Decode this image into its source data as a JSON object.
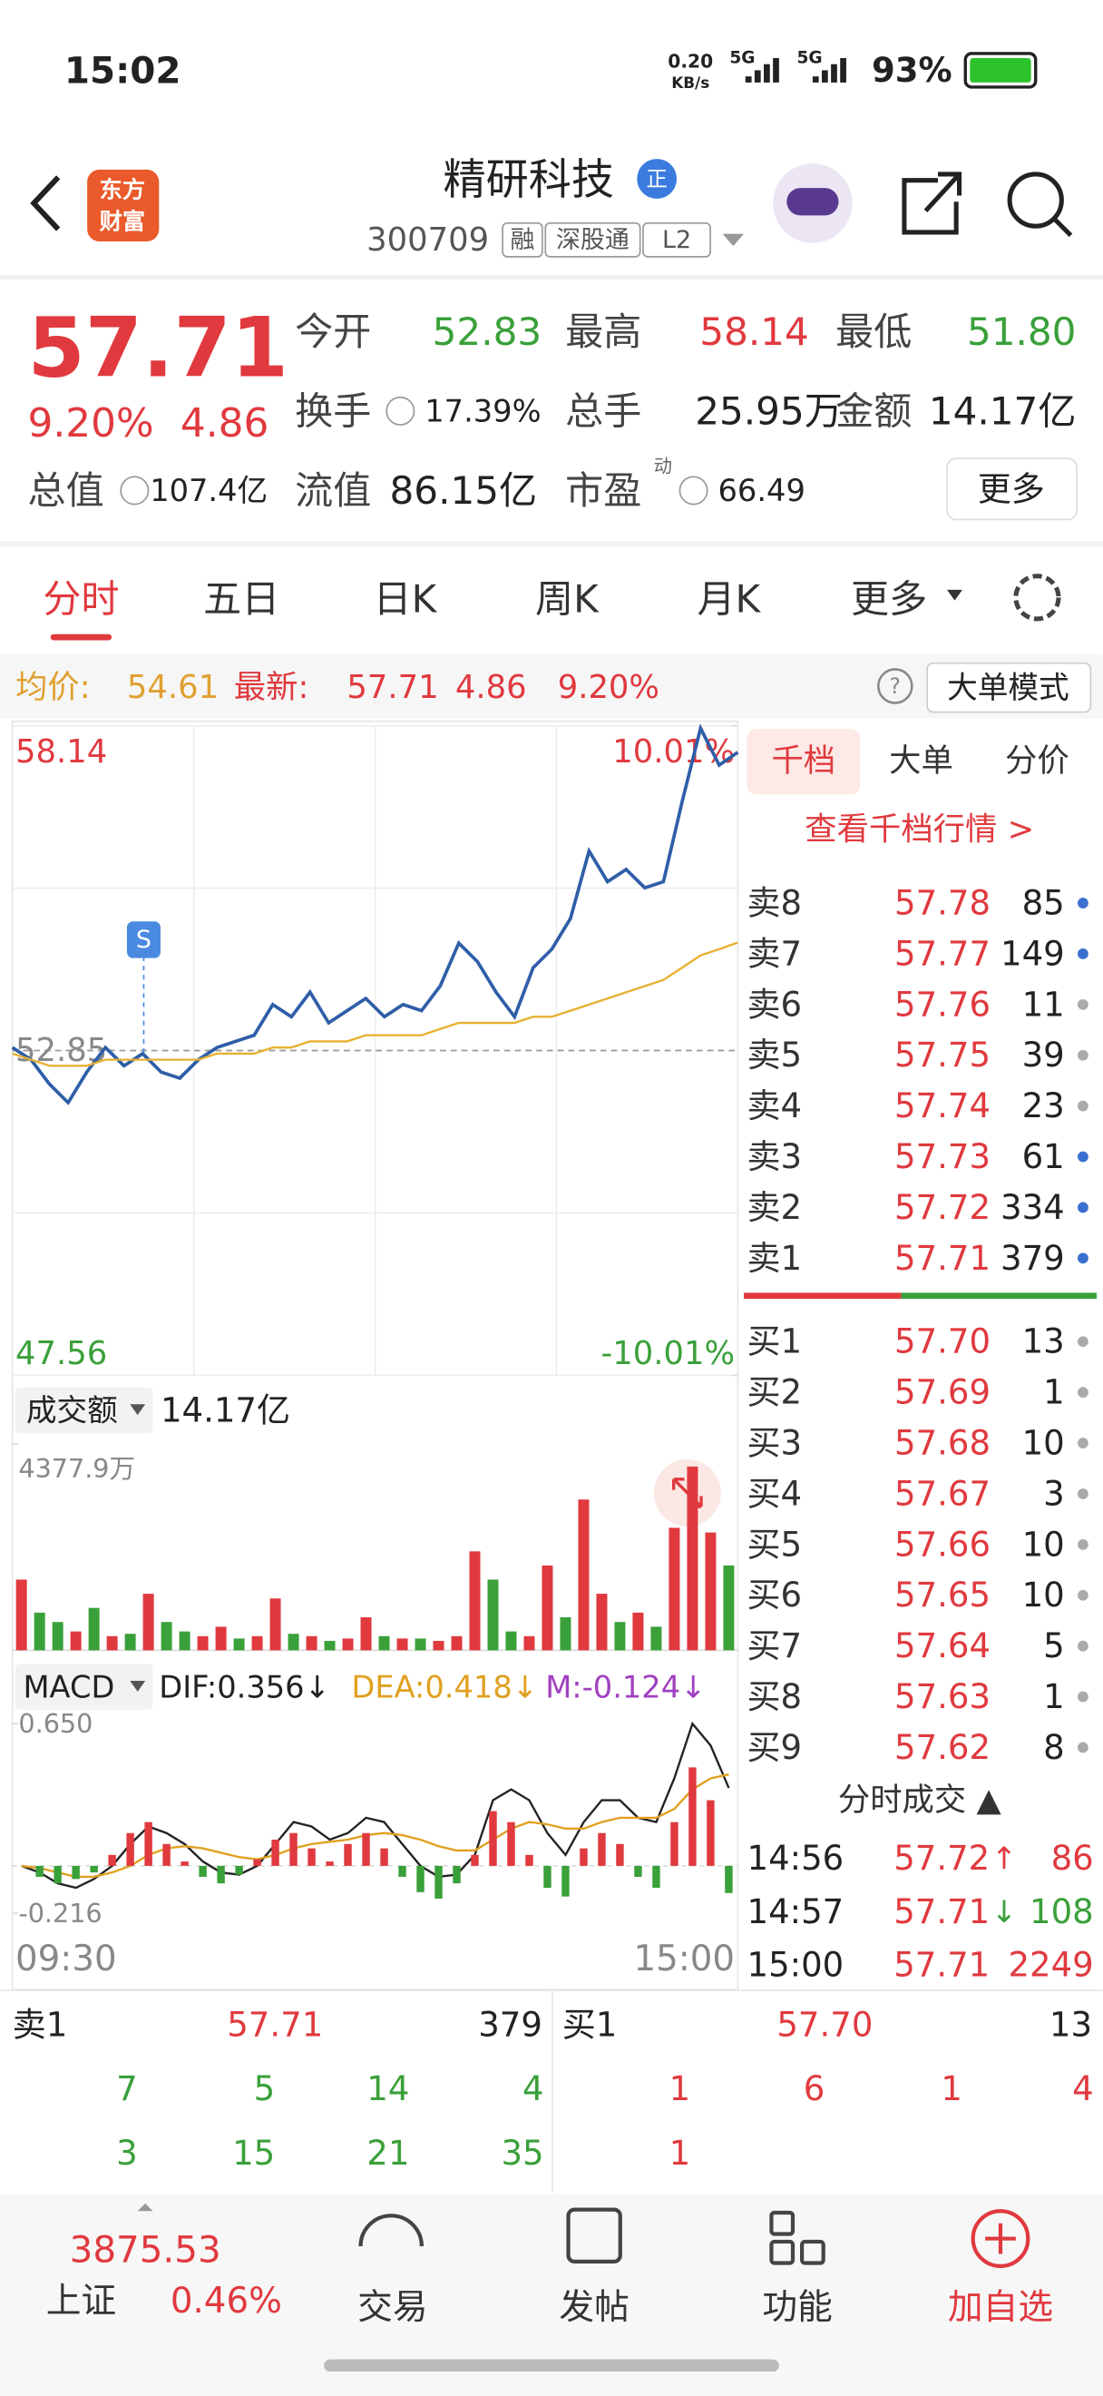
{
  "status_bar": {
    "time": "15:02",
    "net_speed": "0.20",
    "net_unit": "KB/s",
    "signal_1": "5G",
    "signal_2": "5G",
    "battery": "93%"
  },
  "header": {
    "logo": [
      "东方",
      "财富"
    ],
    "name": "精研科技",
    "badge": "正",
    "code": "300709",
    "tags": [
      "融",
      "深股通",
      "L2"
    ]
  },
  "quote": {
    "price": "57.71",
    "change_pct": "9.20%",
    "change": "4.86",
    "total_value": {
      "label": "总值",
      "value": "107.4亿"
    },
    "fields": [
      {
        "label": "今开",
        "value": "52.83"
      },
      {
        "label": "最高",
        "value": "58.14"
      },
      {
        "label": "最低",
        "value": "51.80"
      },
      {
        "label": "换手",
        "value": "17.39%"
      },
      {
        "label": "总手",
        "value": "25.95万"
      },
      {
        "label": "金额",
        "value": "14.17亿"
      },
      {
        "label": "流值",
        "value": "86.15亿"
      },
      {
        "label": "市盈",
        "sup": "动",
        "value": "66.49"
      }
    ],
    "more": "更多"
  },
  "tabs": [
    "分时",
    "五日",
    "日K",
    "周K",
    "月K",
    "更多"
  ],
  "info_bar": {
    "avg_label": "均价:",
    "avg": "54.61",
    "latest_label": "最新:",
    "latest": "57.71",
    "change": "4.86",
    "change_pct": "9.20%",
    "help": "?",
    "mode": "大单模式"
  },
  "chart_data": [
    {
      "type": "line",
      "marker": "S",
      "ylim": [
        47.56,
        58.14
      ],
      "yticks": [
        {
          "value": 58.14,
          "label": "58.14"
        },
        {
          "value": 52.85,
          "label": "52.85"
        },
        {
          "value": 47.56,
          "label": "47.56"
        }
      ],
      "y2lim": [
        -10.01,
        10.01
      ],
      "y2ticks": [
        {
          "value": 10.01,
          "label": "10.01%"
        },
        {
          "value": -10.01,
          "label": "-10.01%"
        }
      ],
      "series": [
        {
          "name": "price",
          "color": "#2f5ea8",
          "values": [
            52.9,
            52.7,
            52.3,
            52.0,
            52.5,
            52.9,
            52.6,
            52.8,
            52.5,
            52.4,
            52.7,
            52.9,
            53.0,
            53.1,
            53.6,
            53.4,
            53.8,
            53.3,
            53.5,
            53.7,
            53.4,
            53.6,
            53.5,
            53.9,
            54.6,
            54.3,
            53.8,
            53.4,
            54.2,
            54.5,
            55.0,
            56.1,
            55.6,
            55.8,
            55.5,
            55.6,
            56.9,
            58.1,
            57.5,
            57.71
          ]
        },
        {
          "name": "avg",
          "color": "#e8b030",
          "values": [
            52.8,
            52.7,
            52.6,
            52.6,
            52.6,
            52.7,
            52.7,
            52.7,
            52.7,
            52.7,
            52.7,
            52.8,
            52.8,
            52.8,
            52.9,
            52.9,
            53.0,
            53.0,
            53.0,
            53.1,
            53.1,
            53.1,
            53.1,
            53.2,
            53.3,
            53.3,
            53.3,
            53.3,
            53.4,
            53.4,
            53.5,
            53.6,
            53.7,
            53.8,
            53.9,
            54.0,
            54.2,
            54.4,
            54.5,
            54.61
          ]
        }
      ]
    },
    {
      "type": "bar",
      "indicator": "成交额",
      "summary": "14.17亿",
      "ylim": [
        0,
        4377.9
      ],
      "yticks": [
        {
          "value": 4377.9,
          "label": "4377.9万"
        }
      ],
      "values": [
        1500,
        800,
        600,
        400,
        900,
        300,
        350,
        1200,
        600,
        400,
        300,
        500,
        250,
        300,
        1100,
        350,
        300,
        200,
        250,
        700,
        300,
        250,
        250,
        200,
        300,
        2100,
        1500,
        400,
        300,
        1800,
        700,
        3200,
        1200,
        600,
        800,
        500,
        2600,
        3900,
        2500,
        1800
      ],
      "colors": [
        "#e0393e",
        "#3aa03a",
        "#3aa03a",
        "#e0393e",
        "#3aa03a",
        "#e0393e",
        "#3aa03a",
        "#e0393e",
        "#3aa03a",
        "#3aa03a",
        "#e0393e",
        "#e0393e",
        "#3aa03a",
        "#e0393e",
        "#e0393e",
        "#3aa03a",
        "#e0393e",
        "#3aa03a",
        "#e0393e",
        "#e0393e",
        "#3aa03a",
        "#e0393e",
        "#3aa03a",
        "#e0393e",
        "#e0393e",
        "#e0393e",
        "#3aa03a",
        "#3aa03a",
        "#e0393e",
        "#e0393e",
        "#3aa03a",
        "#e0393e",
        "#e0393e",
        "#3aa03a",
        "#e0393e",
        "#3aa03a",
        "#e0393e",
        "#e0393e",
        "#e0393e",
        "#3aa03a"
      ]
    },
    {
      "type": "combo",
      "indicator": "MACD",
      "ylim": [
        -0.216,
        0.65
      ],
      "yticks": [
        {
          "value": 0.65,
          "label": "0.650"
        },
        -0.216
      ],
      "x_labels": [
        "09:30",
        "15:00"
      ],
      "series": [
        {
          "name": "DIF:0.356↓",
          "type": "line",
          "color": "#222222",
          "values": [
            0.0,
            -0.03,
            -0.08,
            -0.1,
            -0.06,
            0.0,
            0.1,
            0.18,
            0.15,
            0.1,
            0.02,
            -0.03,
            -0.04,
            0.0,
            0.1,
            0.2,
            0.18,
            0.12,
            0.15,
            0.22,
            0.2,
            0.1,
            0.0,
            -0.05,
            -0.04,
            0.05,
            0.3,
            0.35,
            0.3,
            0.15,
            0.05,
            0.2,
            0.3,
            0.3,
            0.22,
            0.2,
            0.4,
            0.65,
            0.55,
            0.356
          ]
        },
        {
          "name": "DEA:0.418↓",
          "type": "line",
          "color": "#e0a020",
          "values": [
            0.0,
            -0.01,
            -0.03,
            -0.05,
            -0.05,
            -0.03,
            0.0,
            0.05,
            0.08,
            0.09,
            0.08,
            0.06,
            0.04,
            0.03,
            0.05,
            0.08,
            0.1,
            0.11,
            0.12,
            0.14,
            0.15,
            0.14,
            0.12,
            0.09,
            0.07,
            0.07,
            0.12,
            0.17,
            0.2,
            0.19,
            0.17,
            0.17,
            0.2,
            0.22,
            0.22,
            0.22,
            0.26,
            0.35,
            0.4,
            0.418
          ]
        },
        {
          "name": "M:-0.124↓",
          "type": "bar",
          "color": "#a040c0",
          "values": [
            0.0,
            -0.05,
            -0.08,
            -0.06,
            -0.03,
            0.05,
            0.15,
            0.2,
            0.1,
            0.02,
            -0.05,
            -0.08,
            -0.04,
            0.03,
            0.12,
            0.15,
            0.08,
            0.02,
            0.1,
            0.15,
            0.08,
            -0.05,
            -0.12,
            -0.15,
            -0.08,
            0.05,
            0.25,
            0.2,
            0.05,
            -0.1,
            -0.14,
            0.08,
            0.15,
            0.1,
            -0.05,
            -0.1,
            0.2,
            0.45,
            0.3,
            -0.124
          ]
        }
      ]
    }
  ],
  "order_book": {
    "tabs": [
      "千档",
      "大单",
      "分价"
    ],
    "link": "查看千档行情 >",
    "asks": [
      {
        "label": "卖8",
        "price": "57.78",
        "volume": 85,
        "dot": "#3b6fd0"
      },
      {
        "label": "卖7",
        "price": "57.77",
        "volume": 149,
        "dot": "#3b6fd0"
      },
      {
        "label": "卖6",
        "price": "57.76",
        "volume": 11,
        "dot": "#aaaaaa"
      },
      {
        "label": "卖5",
        "price": "57.75",
        "volume": 39,
        "dot": "#aaaaaa"
      },
      {
        "label": "卖4",
        "price": "57.74",
        "volume": 23,
        "dot": "#aaaaaa"
      },
      {
        "label": "卖3",
        "price": "57.73",
        "volume": 61,
        "dot": "#3b6fd0"
      },
      {
        "label": "卖2",
        "price": "57.72",
        "volume": 334,
        "dot": "#3b6fd0"
      },
      {
        "label": "卖1",
        "price": "57.71",
        "volume": 379,
        "dot": "#3b6fd0"
      }
    ],
    "bids": [
      {
        "label": "买1",
        "price": "57.70",
        "volume": 13,
        "dot": "#aaaaaa"
      },
      {
        "label": "买2",
        "price": "57.69",
        "volume": 1,
        "dot": "#aaaaaa"
      },
      {
        "label": "买3",
        "price": "57.68",
        "volume": 10,
        "dot": "#aaaaaa"
      },
      {
        "label": "买4",
        "price": "57.67",
        "volume": 3,
        "dot": "#aaaaaa"
      },
      {
        "label": "买5",
        "price": "57.66",
        "volume": 10,
        "dot": "#aaaaaa"
      },
      {
        "label": "买6",
        "price": "57.65",
        "volume": 10,
        "dot": "#aaaaaa"
      },
      {
        "label": "买7",
        "price": "57.64",
        "volume": 5,
        "dot": "#aaaaaa"
      },
      {
        "label": "买8",
        "price": "57.63",
        "volume": 1,
        "dot": "#aaaaaa"
      },
      {
        "label": "买9",
        "price": "57.62",
        "volume": 8,
        "dot": "#aaaaaa"
      }
    ]
  },
  "trades": {
    "title": "分时成交 ▲",
    "rows": [
      {
        "time": "14:56",
        "price": "57.72",
        "arrow": "↑",
        "arrow_color": "#e0393e",
        "volume": 86,
        "color": "#e0393e"
      },
      {
        "time": "14:57",
        "price": "57.71",
        "arrow": "↓",
        "arrow_color": "#3aa03a",
        "volume": 108,
        "color": "#3aa03a"
      },
      {
        "time": "15:00",
        "price": "57.71",
        "volume": 2249,
        "color": "#e0393e"
      }
    ]
  },
  "queue": {
    "sell": {
      "label": "卖1",
      "price": "57.71",
      "volume": 379,
      "rows": [
        [
          7,
          5,
          14,
          4
        ],
        [
          3,
          15,
          21,
          35
        ]
      ]
    },
    "buy": {
      "label": "买1",
      "price": "57.70",
      "volume": 13,
      "rows": [
        [
          1,
          6,
          1,
          4
        ],
        [
          1
        ]
      ]
    }
  },
  "nav": {
    "index": {
      "value": "3875.53",
      "name": "上证",
      "change_pct": "0.46%"
    },
    "items": [
      "交易",
      "发帖",
      "功能",
      "加自选"
    ]
  }
}
